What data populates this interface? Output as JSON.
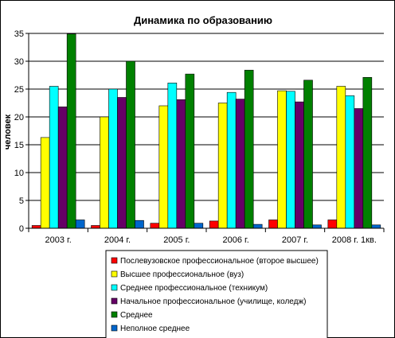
{
  "chart_data": {
    "type": "bar",
    "title": "Динамика по образованию",
    "xlabel": "",
    "ylabel": "человек",
    "ylim": [
      0,
      35
    ],
    "yticks": [
      0,
      5,
      10,
      15,
      20,
      25,
      30,
      35
    ],
    "grid": "horizontal",
    "legend_position": "bottom",
    "categories": [
      "2003 г.",
      "2004 г.",
      "2005 г.",
      "2006 г.",
      "2007 г.",
      "2008 г. 1кв."
    ],
    "series": [
      {
        "name": "Послевузовское профессиональное (второе высшее)",
        "color": "#ff0000",
        "values": [
          0.5,
          0.5,
          0.9,
          1.3,
          1.5,
          1.5
        ]
      },
      {
        "name": "Высшее профессиональное (вуз)",
        "color": "#ffff00",
        "values": [
          16.3,
          20.0,
          22.0,
          22.5,
          24.7,
          25.5
        ]
      },
      {
        "name": "Среднее профессиональное (техникум)",
        "color": "#00ffff",
        "values": [
          25.5,
          25.0,
          26.1,
          24.4,
          24.6,
          23.8
        ]
      },
      {
        "name": "Начальное профессиональное (училище, коледж)",
        "color": "#660066",
        "values": [
          21.8,
          23.5,
          23.1,
          23.2,
          22.7,
          21.5
        ]
      },
      {
        "name": "Среднее",
        "color": "#008000",
        "values": [
          34.9,
          30.0,
          27.7,
          28.4,
          26.6,
          27.1
        ]
      },
      {
        "name": "Неполное среднее",
        "color": "#0066cc",
        "values": [
          1.5,
          1.4,
          0.9,
          0.7,
          0.6,
          0.6
        ]
      }
    ]
  }
}
